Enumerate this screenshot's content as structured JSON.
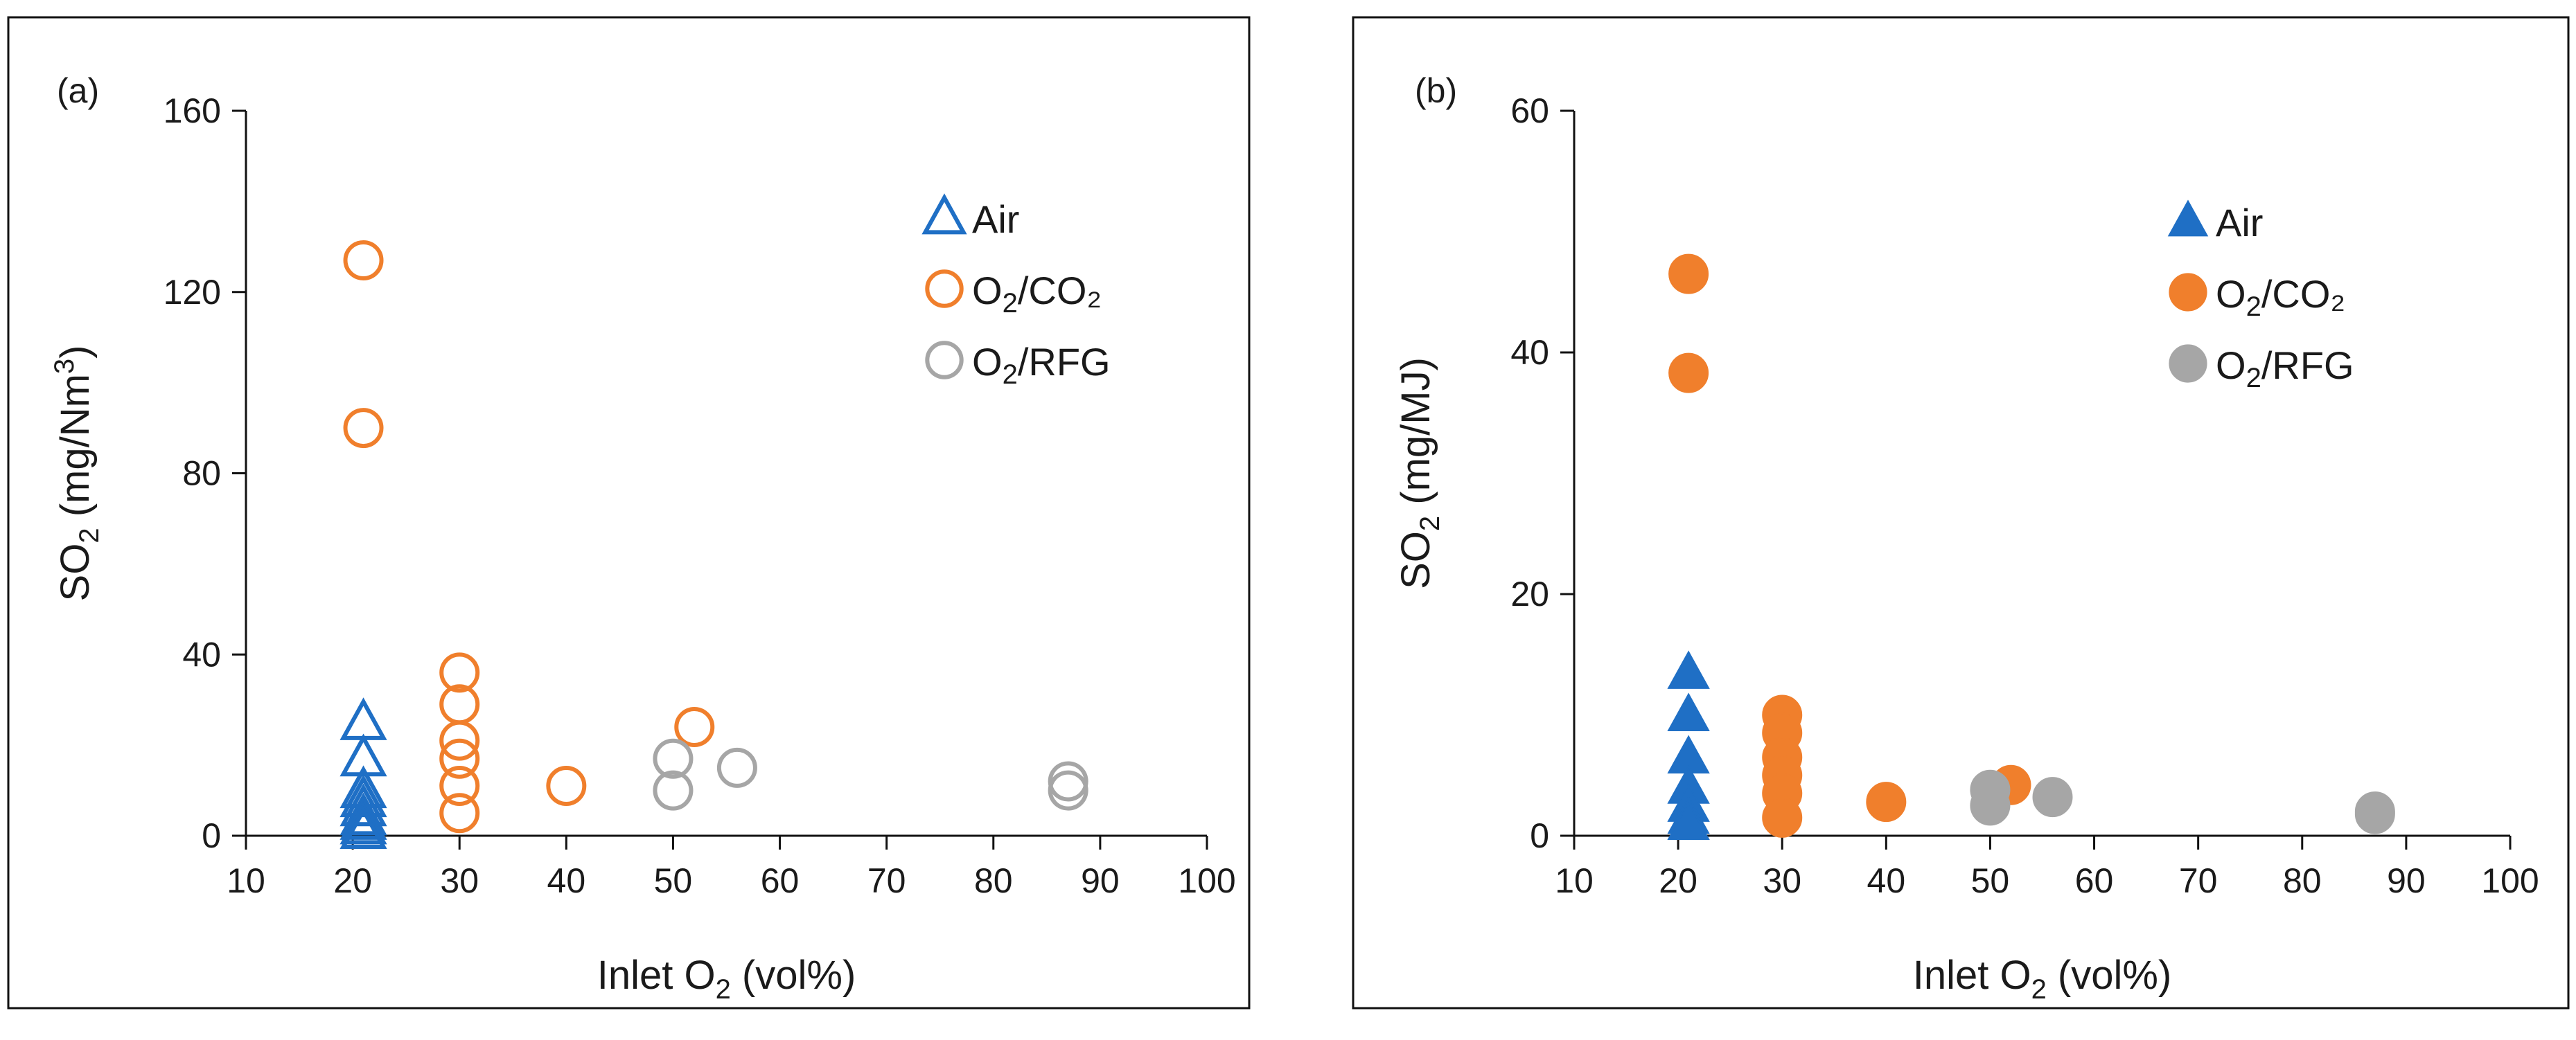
{
  "chart_data": [
    {
      "panel_label": "(a)",
      "type": "scatter",
      "marker_style": "hollow",
      "xlabel": {
        "main": "Inlet O",
        "sub": "2",
        "tail": " (vol%)"
      },
      "ylabel": {
        "main": "SO",
        "sub": "2",
        "mid": " (mg/Nm",
        "sup": "3",
        "tail": ")"
      },
      "xlim": [
        10,
        100
      ],
      "ylim": [
        0,
        160
      ],
      "xticks": [
        10,
        20,
        30,
        40,
        50,
        60,
        70,
        80,
        90,
        100
      ],
      "yticks": [
        0,
        40,
        80,
        120,
        160
      ],
      "legend_position": "top-right",
      "series": [
        {
          "name": "Air",
          "legend_main": "Air",
          "legend_sub": "",
          "legend_tail": "",
          "marker": "triangle",
          "color": "#1f6fc5",
          "points": [
            [
              21,
              25
            ],
            [
              21,
              17
            ],
            [
              21,
              10
            ],
            [
              21,
              8
            ],
            [
              21,
              6
            ],
            [
              21,
              4
            ],
            [
              21,
              3
            ],
            [
              21,
              2
            ],
            [
              21,
              1
            ]
          ]
        },
        {
          "name": "O2/CO2",
          "legend_main": "O",
          "legend_sub": "2",
          "legend_tail": "/CO₂",
          "marker": "circle",
          "color": "#f07f2c",
          "points": [
            [
              21,
              127
            ],
            [
              21,
              90
            ],
            [
              30,
              36
            ],
            [
              30,
              29
            ],
            [
              30,
              21
            ],
            [
              30,
              17
            ],
            [
              30,
              11
            ],
            [
              30,
              5
            ],
            [
              40,
              11
            ],
            [
              52,
              24
            ]
          ]
        },
        {
          "name": "O2/RFG",
          "legend_main": "O",
          "legend_sub": "2",
          "legend_tail": "/RFG",
          "marker": "circle",
          "color": "#a6a6a6",
          "points": [
            [
              50,
              17
            ],
            [
              50,
              10
            ],
            [
              56,
              15
            ],
            [
              87,
              12
            ],
            [
              87,
              10
            ]
          ]
        }
      ]
    },
    {
      "panel_label": "(b)",
      "type": "scatter",
      "marker_style": "filled",
      "xlabel": {
        "main": "Inlet O",
        "sub": "2",
        "tail": " (vol%)"
      },
      "ylabel": {
        "main": "SO",
        "sub": "2",
        "mid": " (mg/MJ)",
        "sup": "",
        "tail": ""
      },
      "xlim": [
        10,
        100
      ],
      "ylim": [
        0,
        60
      ],
      "xticks": [
        10,
        20,
        30,
        40,
        50,
        60,
        70,
        80,
        90,
        100
      ],
      "yticks": [
        0,
        20,
        40,
        60
      ],
      "legend_position": "top-right",
      "series": [
        {
          "name": "Air",
          "legend_main": "Air",
          "legend_sub": "",
          "legend_tail": "",
          "marker": "triangle",
          "color": "#1f6fc5",
          "points": [
            [
              21,
              13.5
            ],
            [
              21,
              10
            ],
            [
              21,
              6.5
            ],
            [
              21,
              4
            ],
            [
              21,
              2.5
            ],
            [
              21,
              1.5
            ],
            [
              21,
              1
            ]
          ]
        },
        {
          "name": "O2/CO2",
          "legend_main": "O",
          "legend_sub": "2",
          "legend_tail": "/CO₂",
          "marker": "circle",
          "color": "#f07f2c",
          "points": [
            [
              21,
              46.5
            ],
            [
              21,
              38.3
            ],
            [
              30,
              10
            ],
            [
              30,
              8.5
            ],
            [
              30,
              6.5
            ],
            [
              30,
              5
            ],
            [
              30,
              3.5
            ],
            [
              30,
              1.5
            ],
            [
              40,
              2.8
            ],
            [
              52,
              4.2
            ]
          ]
        },
        {
          "name": "O2/RFG",
          "legend_main": "O",
          "legend_sub": "2",
          "legend_tail": "/RFG",
          "marker": "circle",
          "color": "#a6a6a6",
          "points": [
            [
              50,
              3.8
            ],
            [
              50,
              2.5
            ],
            [
              56,
              3.2
            ],
            [
              87,
              2
            ],
            [
              87,
              1.8
            ]
          ]
        }
      ]
    }
  ]
}
